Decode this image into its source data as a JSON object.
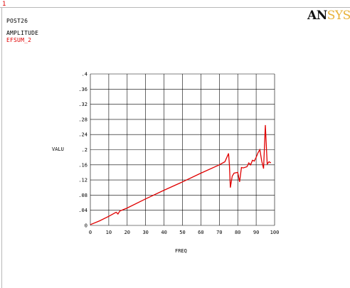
{
  "window": {
    "number": "1"
  },
  "header": {
    "line1": "POST26",
    "line2": "AMPLITUDE",
    "line3": "EFSUM_2"
  },
  "logo": {
    "part1": "AN",
    "part2": "SYS"
  },
  "colors": {
    "curve": "#e00000",
    "grid": "#000000",
    "logo_accent": "#e8b23a"
  },
  "chart_data": {
    "type": "line",
    "title": "",
    "xlabel": "FREQ",
    "ylabel": "VALU",
    "xlim": [
      0,
      100
    ],
    "ylim": [
      0,
      0.4
    ],
    "xticks": [
      "0",
      "10",
      "20",
      "30",
      "40",
      "50",
      "60",
      "70",
      "80",
      "90",
      "100"
    ],
    "yticks": [
      "0",
      ".04",
      ".08",
      ".12",
      ".16",
      ".2",
      ".24",
      ".28",
      ".32",
      ".36",
      ".4"
    ],
    "grid": true,
    "series": [
      {
        "name": "",
        "x": [
          0,
          5,
          10,
          14,
          15,
          16,
          20,
          30,
          40,
          50,
          60,
          70,
          73,
          75,
          75.5,
          76,
          77,
          78,
          80,
          81,
          82,
          83,
          85,
          86,
          87,
          88,
          89,
          90,
          91,
          92,
          93,
          94,
          95,
          96,
          97,
          98
        ],
        "y": [
          0.002,
          0.012,
          0.024,
          0.035,
          0.03,
          0.038,
          0.046,
          0.07,
          0.093,
          0.115,
          0.138,
          0.16,
          0.168,
          0.19,
          0.16,
          0.1,
          0.13,
          0.138,
          0.14,
          0.115,
          0.153,
          0.152,
          0.155,
          0.165,
          0.16,
          0.172,
          0.17,
          0.18,
          0.192,
          0.2,
          0.17,
          0.15,
          0.265,
          0.162,
          0.168,
          0.165
        ]
      }
    ]
  }
}
